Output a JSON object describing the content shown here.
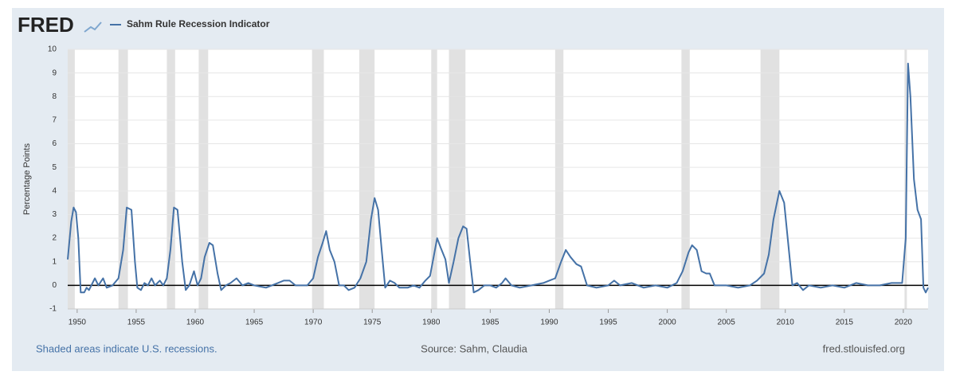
{
  "chart_data": {
    "type": "line",
    "logo": "FRED",
    "title": "Sahm Rule Recession Indicator",
    "ylabel": "Percentage Points",
    "footer_left": "Shaded areas indicate U.S. recessions.",
    "footer_center": "Source: Sahm, Claudia",
    "footer_right": "fred.stlouisfed.org",
    "xlim": [
      1949.2,
      2022.1
    ],
    "xticks": [
      1950,
      1955,
      1960,
      1965,
      1970,
      1975,
      1980,
      1985,
      1990,
      1995,
      2000,
      2005,
      2010,
      2015,
      2020
    ],
    "ylim": [
      -1,
      10
    ],
    "yticks": [
      -1,
      0,
      1,
      2,
      3,
      4,
      5,
      6,
      7,
      8,
      9,
      10
    ],
    "grid": true,
    "recessions": [
      [
        1949.2,
        1949.8
      ],
      [
        1953.5,
        1954.3
      ],
      [
        1957.6,
        1958.3
      ],
      [
        1960.3,
        1961.1
      ],
      [
        1969.9,
        1970.9
      ],
      [
        1973.9,
        1975.2
      ],
      [
        1980.0,
        1980.5
      ],
      [
        1981.5,
        1982.9
      ],
      [
        1990.5,
        1991.2
      ],
      [
        2001.2,
        2001.9
      ],
      [
        2007.9,
        2009.5
      ],
      [
        2020.1,
        2020.3
      ]
    ],
    "series": [
      {
        "name": "Sahm Rule Recession Indicator",
        "color": "#4572a7",
        "x": [
          1949.2,
          1949.5,
          1949.7,
          1949.9,
          1950.1,
          1950.3,
          1950.6,
          1950.8,
          1951.0,
          1951.5,
          1951.8,
          1952.2,
          1952.5,
          1953.0,
          1953.5,
          1953.9,
          1954.2,
          1954.6,
          1954.9,
          1955.1,
          1955.4,
          1955.7,
          1956.0,
          1956.3,
          1956.6,
          1957.0,
          1957.3,
          1957.6,
          1957.9,
          1958.2,
          1958.5,
          1958.9,
          1959.2,
          1959.5,
          1959.9,
          1960.2,
          1960.5,
          1960.8,
          1961.2,
          1961.5,
          1961.9,
          1962.2,
          1962.6,
          1963.0,
          1963.5,
          1964.0,
          1964.5,
          1965.0,
          1966.0,
          1967.0,
          1967.5,
          1968.0,
          1968.5,
          1969.5,
          1970.0,
          1970.4,
          1970.8,
          1971.1,
          1971.4,
          1971.8,
          1972.2,
          1972.6,
          1973.0,
          1973.5,
          1974.0,
          1974.5,
          1974.9,
          1975.2,
          1975.5,
          1975.8,
          1976.1,
          1976.5,
          1976.9,
          1977.3,
          1978.0,
          1978.5,
          1979.0,
          1979.5,
          1979.9,
          1980.2,
          1980.5,
          1980.8,
          1981.2,
          1981.5,
          1981.9,
          1982.3,
          1982.7,
          1983.0,
          1983.3,
          1983.6,
          1984.0,
          1984.5,
          1985.0,
          1985.5,
          1986.0,
          1986.3,
          1986.8,
          1987.5,
          1988.5,
          1989.5,
          1990.0,
          1990.5,
          1991.0,
          1991.4,
          1991.8,
          1992.3,
          1992.7,
          1993.2,
          1994.0,
          1995.0,
          1995.5,
          1996.0,
          1997.0,
          1998.0,
          1999.0,
          2000.0,
          2000.8,
          2001.3,
          2001.8,
          2002.1,
          2002.5,
          2002.9,
          2003.3,
          2003.6,
          2004.0,
          2005.0,
          2006.0,
          2007.0,
          2007.6,
          2008.2,
          2008.6,
          2009.0,
          2009.5,
          2009.9,
          2010.3,
          2010.6,
          2011.0,
          2011.5,
          2012.0,
          2013.0,
          2014.0,
          2015.0,
          2016.0,
          2017.0,
          2018.0,
          2019.0,
          2019.9,
          2020.2,
          2020.4,
          2020.6,
          2020.9,
          2021.2,
          2021.5,
          2021.7,
          2021.9,
          2022.1
        ],
        "values": [
          1.1,
          2.7,
          3.3,
          3.1,
          2.0,
          -0.3,
          -0.3,
          -0.1,
          -0.2,
          0.3,
          0.0,
          0.3,
          -0.1,
          0.0,
          0.3,
          1.5,
          3.3,
          3.2,
          1.0,
          -0.1,
          -0.2,
          0.1,
          0.0,
          0.3,
          0.0,
          0.2,
          0.0,
          0.3,
          1.5,
          3.3,
          3.2,
          1.0,
          -0.2,
          0.0,
          0.6,
          0.0,
          0.3,
          1.2,
          1.8,
          1.7,
          0.5,
          -0.2,
          0.0,
          0.1,
          0.3,
          0.0,
          0.1,
          0.0,
          -0.1,
          0.1,
          0.2,
          0.2,
          0.0,
          0.0,
          0.3,
          1.2,
          1.8,
          2.3,
          1.5,
          1.0,
          0.0,
          0.0,
          -0.2,
          -0.1,
          0.3,
          1.0,
          2.8,
          3.7,
          3.2,
          1.5,
          -0.1,
          0.2,
          0.1,
          -0.1,
          -0.1,
          0.0,
          -0.1,
          0.2,
          0.4,
          1.2,
          2.0,
          1.6,
          1.1,
          0.1,
          1.0,
          2.0,
          2.5,
          2.4,
          1.0,
          -0.3,
          -0.2,
          0.0,
          0.0,
          -0.1,
          0.1,
          0.3,
          0.0,
          -0.1,
          0.0,
          0.1,
          0.2,
          0.3,
          1.0,
          1.5,
          1.2,
          0.9,
          0.8,
          0.0,
          -0.1,
          0.0,
          0.2,
          0.0,
          0.1,
          -0.1,
          0.0,
          -0.1,
          0.1,
          0.6,
          1.4,
          1.7,
          1.5,
          0.6,
          0.5,
          0.5,
          0.0,
          0.0,
          -0.1,
          0.0,
          0.2,
          0.5,
          1.3,
          2.8,
          4.0,
          3.5,
          1.5,
          0.0,
          0.1,
          -0.2,
          0.0,
          -0.1,
          0.0,
          -0.1,
          0.1,
          0.0,
          0.0,
          0.1,
          0.1,
          2.0,
          9.4,
          8.0,
          4.5,
          3.2,
          2.8,
          -0.1,
          -0.3,
          -0.1
        ]
      }
    ]
  }
}
